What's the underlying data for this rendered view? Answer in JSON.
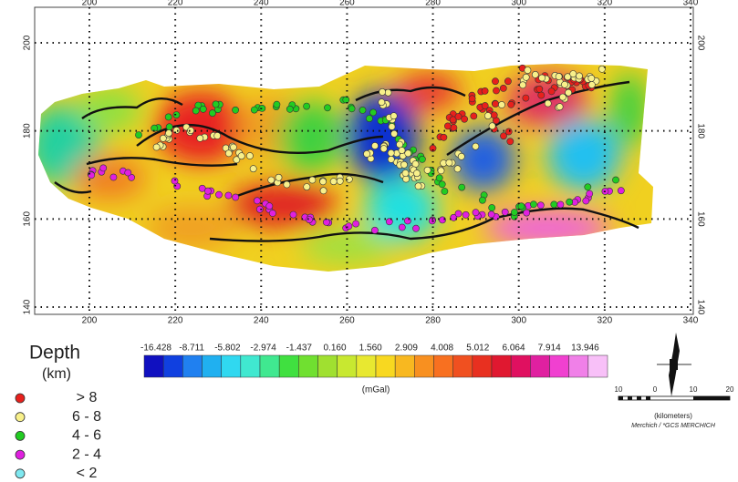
{
  "map": {
    "x_ticks": [
      200,
      220,
      240,
      260,
      280,
      300,
      320,
      340
    ],
    "y_ticks": [
      140,
      160,
      180,
      200
    ]
  },
  "colorbar": {
    "labels": [
      "-16.428",
      "-8.711",
      "-5.802",
      "-2.974",
      "-1.437",
      "0.160",
      "1.560",
      "2.909",
      "4.008",
      "5.012",
      "6.064",
      "7.914",
      "13.946"
    ],
    "unit": "(mGal)"
  },
  "legend": {
    "title": "Depth",
    "unit": "(km)",
    "items": [
      {
        "label": "> 8",
        "color": "#e8201c"
      },
      {
        "label": "6 - 8",
        "color": "#f8f08a"
      },
      {
        "label": "4 - 6",
        "color": "#22cc22"
      },
      {
        "label": "2 - 4",
        "color": "#e020e0"
      },
      {
        "label": "< 2",
        "color": "#7fe8f0"
      }
    ]
  },
  "scalebar": {
    "ticks": [
      "10",
      "0",
      "10",
      "20"
    ],
    "unit": "(kilometers)",
    "credit": "Merchich / *GCS MERCHICH"
  }
}
